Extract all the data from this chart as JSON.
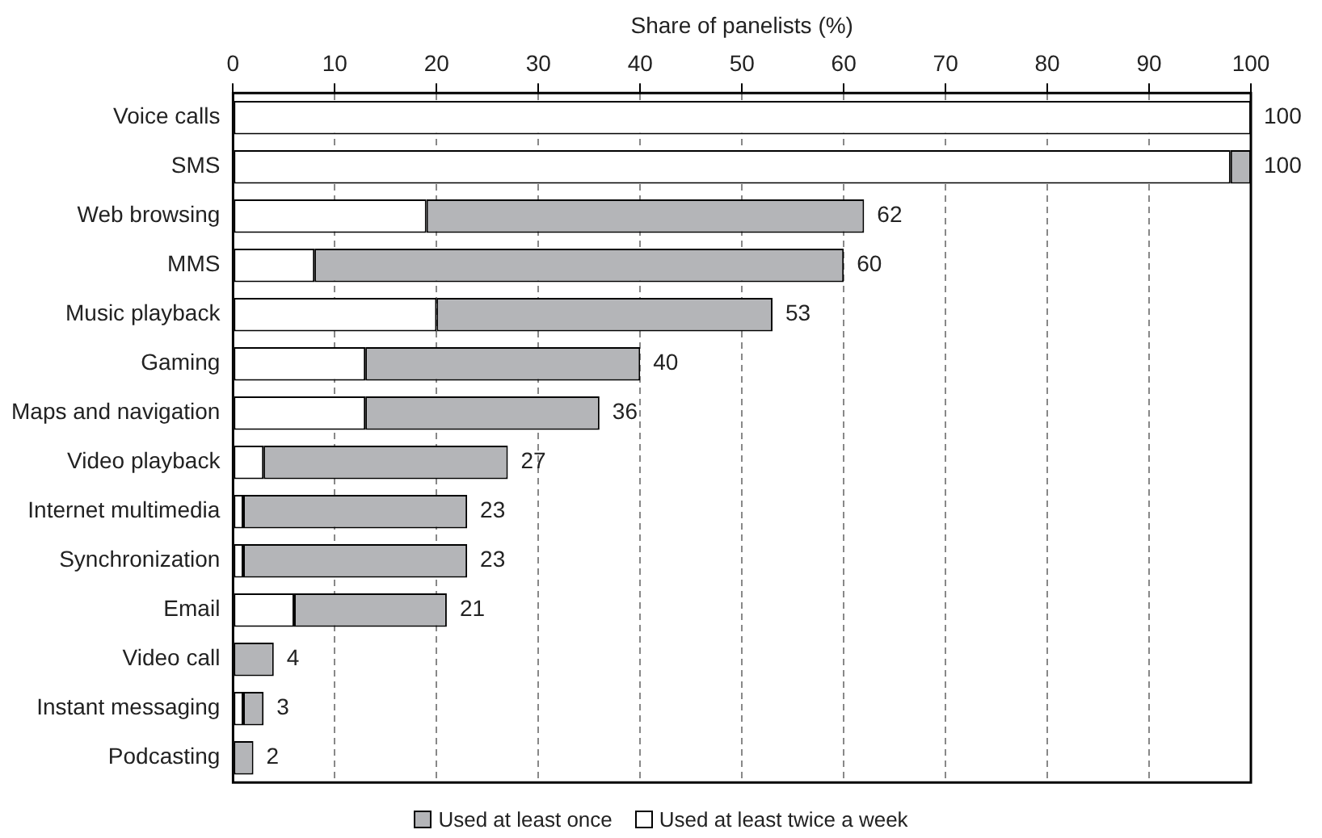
{
  "chart_data": {
    "type": "bar",
    "orientation": "horizontal",
    "stacked": true,
    "xlabel": "Share of panelists (%)",
    "categories": [
      "Voice calls",
      "SMS",
      "Web browsing",
      "MMS",
      "Music playback",
      "Gaming",
      "Maps and navigation",
      "Video playback",
      "Internet multimedia",
      "Synchronization",
      "Email",
      "Video call",
      "Instant messaging",
      "Podcasting"
    ],
    "series": [
      {
        "name": "Used at least twice a week",
        "color": "#ffffff",
        "values": [
          100,
          98,
          19,
          8,
          20,
          13,
          13,
          3,
          1,
          1,
          6,
          0,
          1,
          0
        ]
      },
      {
        "name": "Used at least once",
        "color": "#b4b5b8",
        "values": [
          0,
          2,
          43,
          52,
          33,
          27,
          23,
          24,
          22,
          22,
          15,
          4,
          2,
          2
        ]
      }
    ],
    "totals": [
      "100",
      "100",
      "62",
      "60",
      "53",
      "40",
      "36",
      "27",
      "23",
      "23",
      "21",
      "4",
      "3",
      "2"
    ],
    "xlim": [
      0,
      100
    ],
    "xticks": [
      0,
      10,
      20,
      30,
      40,
      50,
      60,
      70,
      80,
      90,
      100
    ],
    "grid": "x",
    "legend": "bottom"
  }
}
